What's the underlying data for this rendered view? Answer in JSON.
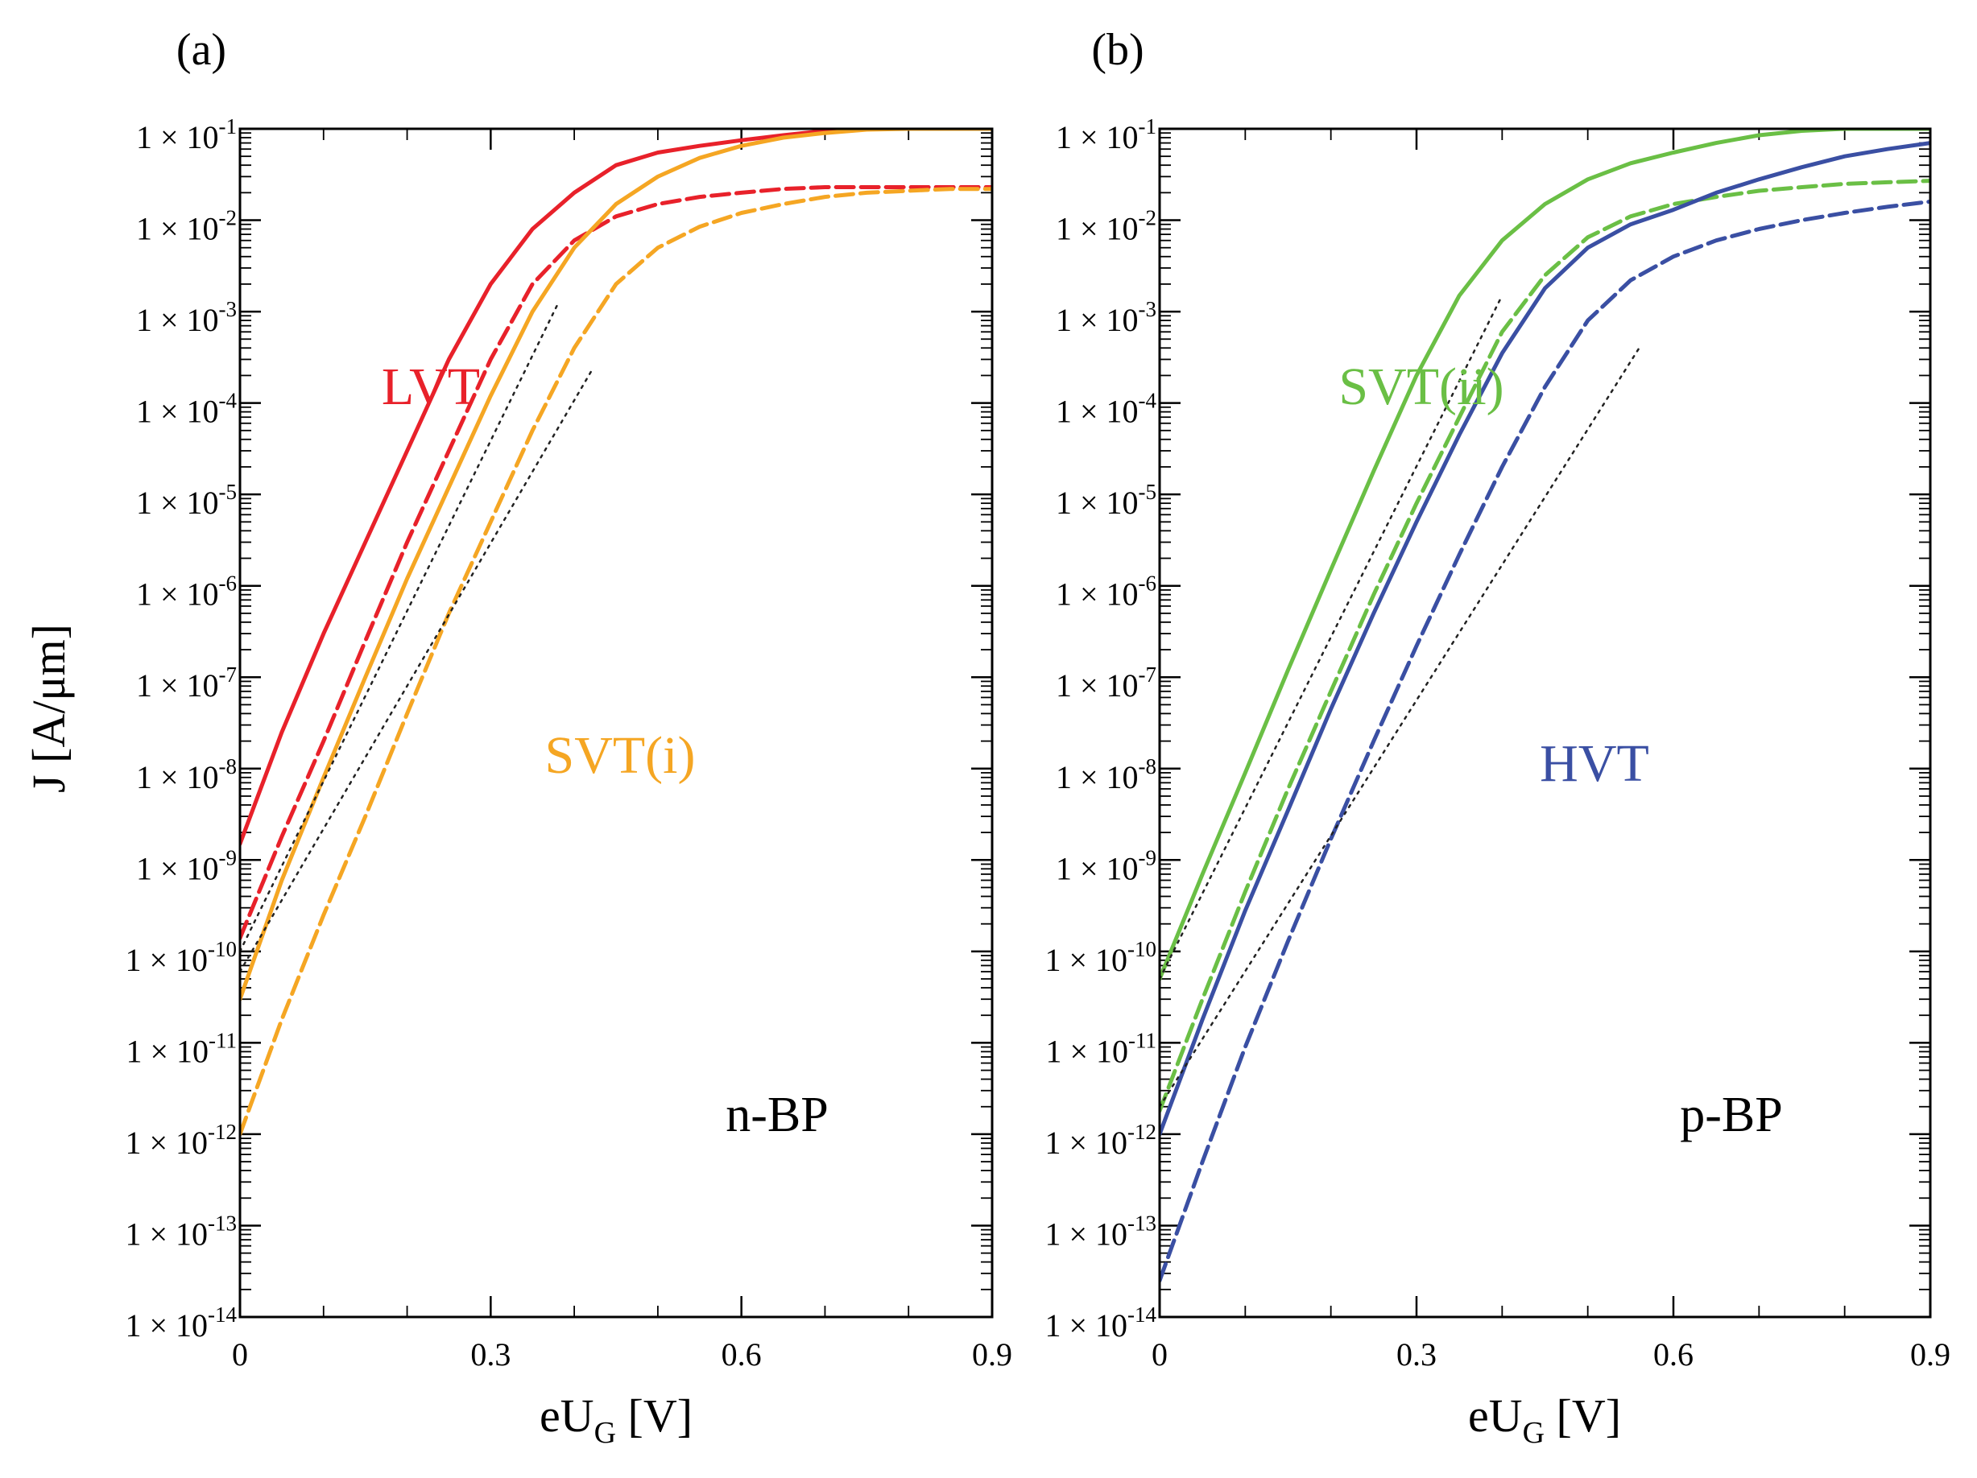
{
  "chart_data": [
    {
      "type": "line",
      "panel_label": "(a)",
      "xlabel": "eU_G [V]",
      "ylabel": "J [A/μm]",
      "xlim": [
        0,
        0.9
      ],
      "ylim": [
        1e-14,
        0.1
      ],
      "y_scale": "log",
      "x_ticks": [
        "0",
        "0.3",
        "0.6",
        "0.9"
      ],
      "y_ticks": [
        "1 × 10-1",
        "1 × 10-2",
        "1 × 10-3",
        "1 × 10-4",
        "1 × 10-5",
        "1 × 10-6",
        "1 × 10-7",
        "1 × 10-8",
        "1 × 10-9",
        "1 × 10-10",
        "1 × 10-11",
        "1 × 10-12",
        "1 × 10-13",
        "1 × 10-14"
      ],
      "annotations": {
        "device": "n-BP",
        "series_a": "LVT",
        "series_b": "SVT(i)"
      },
      "colors": {
        "series_a": "#e8212a",
        "series_b": "#f5a623"
      },
      "series": [
        {
          "style": "solid",
          "color": "#e8212a",
          "x": [
            0,
            0.05,
            0.1,
            0.15,
            0.2,
            0.25,
            0.3,
            0.35,
            0.4,
            0.45,
            0.5,
            0.55,
            0.6,
            0.65,
            0.7,
            0.75,
            0.8,
            0.85,
            0.9
          ],
          "y": [
            1.5e-09,
            2.5e-08,
            3e-07,
            3e-06,
            3e-05,
            0.0003,
            0.002,
            0.008,
            0.02,
            0.04,
            0.055,
            0.065,
            0.075,
            0.085,
            0.095,
            0.1,
            0.1,
            0.1,
            0.1
          ]
        },
        {
          "style": "dashed",
          "color": "#e8212a",
          "x": [
            0,
            0.05,
            0.1,
            0.15,
            0.2,
            0.25,
            0.3,
            0.35,
            0.4,
            0.45,
            0.5,
            0.55,
            0.6,
            0.65,
            0.7,
            0.75,
            0.8,
            0.85,
            0.9
          ],
          "y": [
            1.4e-10,
            1.8e-09,
            2e-08,
            2.5e-07,
            3e-06,
            3e-05,
            0.0003,
            0.002,
            0.006,
            0.011,
            0.015,
            0.018,
            0.02,
            0.022,
            0.023,
            0.023,
            0.023,
            0.023,
            0.023
          ]
        },
        {
          "style": "solid",
          "color": "#f5a623",
          "x": [
            0,
            0.05,
            0.1,
            0.15,
            0.2,
            0.25,
            0.3,
            0.35,
            0.4,
            0.45,
            0.5,
            0.55,
            0.6,
            0.65,
            0.7,
            0.75,
            0.8,
            0.85,
            0.9
          ],
          "y": [
            3e-11,
            6e-10,
            8e-09,
            1e-07,
            1.2e-06,
            1.2e-05,
            0.00012,
            0.001,
            0.005,
            0.015,
            0.03,
            0.048,
            0.065,
            0.08,
            0.09,
            0.098,
            0.1,
            0.1,
            0.1
          ]
        },
        {
          "style": "dashed",
          "color": "#f5a623",
          "x": [
            0,
            0.05,
            0.1,
            0.15,
            0.2,
            0.25,
            0.3,
            0.35,
            0.4,
            0.45,
            0.5,
            0.55,
            0.6,
            0.65,
            0.7,
            0.75,
            0.8,
            0.85,
            0.9
          ],
          "y": [
            1e-12,
            1.8e-11,
            2.5e-10,
            3e-09,
            4e-08,
            5e-07,
            5e-06,
            5e-05,
            0.0004,
            0.002,
            0.005,
            0.0085,
            0.012,
            0.015,
            0.018,
            0.02,
            0.021,
            0.022,
            0.022
          ]
        },
        {
          "style": "dotted",
          "color": "#222222",
          "x": [
            0,
            0.38
          ],
          "y": [
            1e-10,
            0.0012
          ]
        },
        {
          "style": "dotted",
          "color": "#222222",
          "x": [
            0,
            0.42
          ],
          "y": [
            6e-11,
            0.00022
          ]
        }
      ]
    },
    {
      "type": "line",
      "panel_label": "(b)",
      "xlabel": "eU_G [V]",
      "ylabel": "",
      "xlim": [
        0,
        0.9
      ],
      "ylim": [
        1e-14,
        0.1
      ],
      "y_scale": "log",
      "x_ticks": [
        "0",
        "0.3",
        "0.6",
        "0.9"
      ],
      "y_ticks": [
        "1 × 10-1",
        "1 × 10-2",
        "1 × 10-3",
        "1 × 10-4",
        "1 × 10-5",
        "1 × 10-6",
        "1 × 10-7",
        "1 × 10-8",
        "1 × 10-9",
        "1 × 10-10",
        "1 × 10-11",
        "1 × 10-12",
        "1 × 10-13",
        "1 × 10-14"
      ],
      "annotations": {
        "device": "p-BP",
        "series_a": "SVT(ii)",
        "series_b": "HVT"
      },
      "colors": {
        "series_a": "#6abf45",
        "series_b": "#3a4fa3"
      },
      "series": [
        {
          "style": "solid",
          "color": "#6abf45",
          "x": [
            0,
            0.05,
            0.1,
            0.15,
            0.2,
            0.25,
            0.3,
            0.35,
            0.4,
            0.45,
            0.5,
            0.55,
            0.6,
            0.65,
            0.7,
            0.75,
            0.8,
            0.85,
            0.9
          ],
          "y": [
            5e-11,
            7e-10,
            9e-09,
            1.2e-07,
            1.5e-06,
            1.8e-05,
            0.0002,
            0.0015,
            0.006,
            0.015,
            0.028,
            0.042,
            0.055,
            0.07,
            0.085,
            0.095,
            0.1,
            0.1,
            0.1
          ]
        },
        {
          "style": "dashed",
          "color": "#6abf45",
          "x": [
            0,
            0.05,
            0.1,
            0.15,
            0.2,
            0.25,
            0.3,
            0.35,
            0.4,
            0.45,
            0.5,
            0.55,
            0.6,
            0.65,
            0.7,
            0.75,
            0.8,
            0.85,
            0.9
          ],
          "y": [
            1.8e-12,
            3e-11,
            4.5e-10,
            6e-09,
            7e-08,
            8e-07,
            8e-06,
            7e-05,
            0.0006,
            0.0025,
            0.0065,
            0.011,
            0.015,
            0.018,
            0.021,
            0.023,
            0.025,
            0.026,
            0.027
          ]
        },
        {
          "style": "solid",
          "color": "#3a4fa3",
          "x": [
            0,
            0.05,
            0.1,
            0.15,
            0.2,
            0.25,
            0.3,
            0.35,
            0.4,
            0.45,
            0.5,
            0.55,
            0.6,
            0.65,
            0.7,
            0.75,
            0.8,
            0.85,
            0.9
          ],
          "y": [
            1e-12,
            1.8e-11,
            2.8e-10,
            3.5e-09,
            4.5e-08,
            5e-07,
            5e-06,
            4.5e-05,
            0.00035,
            0.0018,
            0.005,
            0.009,
            0.013,
            0.02,
            0.028,
            0.038,
            0.05,
            0.06,
            0.07
          ]
        },
        {
          "style": "dashed",
          "color": "#3a4fa3",
          "x": [
            0,
            0.05,
            0.1,
            0.15,
            0.2,
            0.25,
            0.3,
            0.35,
            0.4,
            0.45,
            0.5,
            0.55,
            0.6,
            0.65,
            0.7,
            0.75,
            0.8,
            0.85,
            0.9
          ],
          "y": [
            2.5e-14,
            5e-13,
            9e-12,
            1.3e-10,
            1.7e-09,
            2e-08,
            2.2e-07,
            2.2e-06,
            2e-05,
            0.00015,
            0.0008,
            0.0022,
            0.004,
            0.006,
            0.008,
            0.01,
            0.012,
            0.014,
            0.016
          ]
        },
        {
          "style": "dotted",
          "color": "#222222",
          "x": [
            0,
            0.4
          ],
          "y": [
            5e-11,
            0.0015
          ]
        },
        {
          "style": "dotted",
          "color": "#222222",
          "x": [
            0,
            0.56
          ],
          "y": [
            2e-12,
            0.0004
          ]
        }
      ]
    }
  ]
}
